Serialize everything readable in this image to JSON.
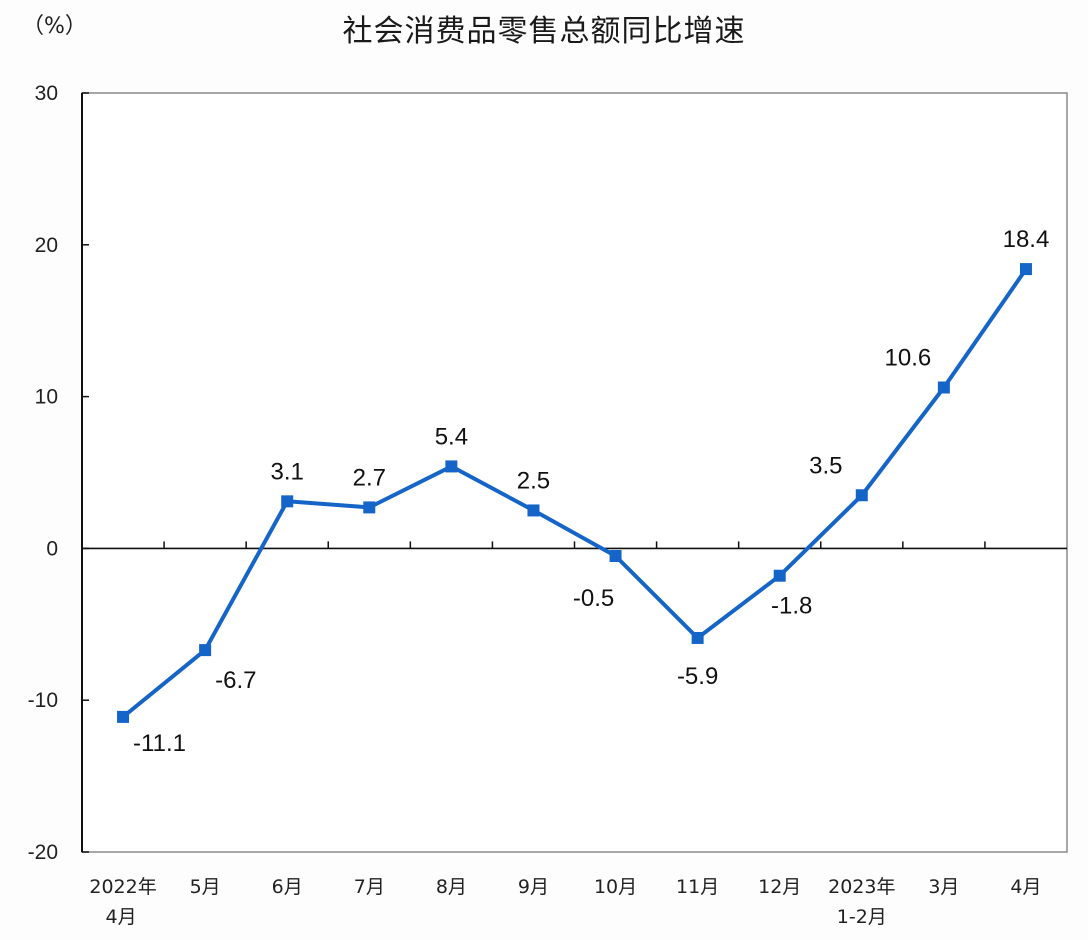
{
  "chart_data": {
    "type": "line",
    "title": "社会消费品零售总额同比增速",
    "unit_label": "（%）",
    "xlabel": "",
    "ylabel": "%",
    "ylim": [
      -20,
      30
    ],
    "yticks": [
      30,
      20,
      10,
      0,
      -10,
      -20
    ],
    "grid": false,
    "legend": null,
    "categories": [
      [
        "2022年",
        "4月"
      ],
      [
        "5月"
      ],
      [
        "6月"
      ],
      [
        "7月"
      ],
      [
        "8月"
      ],
      [
        "9月"
      ],
      [
        "10月"
      ],
      [
        "11月"
      ],
      [
        "12月"
      ],
      [
        "2023年",
        "1-2月"
      ],
      [
        "3月"
      ],
      [
        "4月"
      ]
    ],
    "series": [
      {
        "name": "社会消费品零售总额同比增速",
        "color": "#1565c8",
        "values": [
          -11.1,
          -6.7,
          3.1,
          2.7,
          5.4,
          2.5,
          -0.5,
          -5.9,
          -1.8,
          3.5,
          10.6,
          18.4
        ],
        "labels": [
          "-11.1",
          "-6.7",
          "3.1",
          "2.7",
          "5.4",
          "2.5",
          "-0.5",
          "-5.9",
          "-1.8",
          "3.5",
          "10.6",
          "18.4"
        ],
        "label_pos": [
          "below-right",
          "below-right",
          "above",
          "above",
          "above",
          "above",
          "below-left",
          "below",
          "below",
          "above-left",
          "above-left",
          "above"
        ]
      }
    ]
  }
}
